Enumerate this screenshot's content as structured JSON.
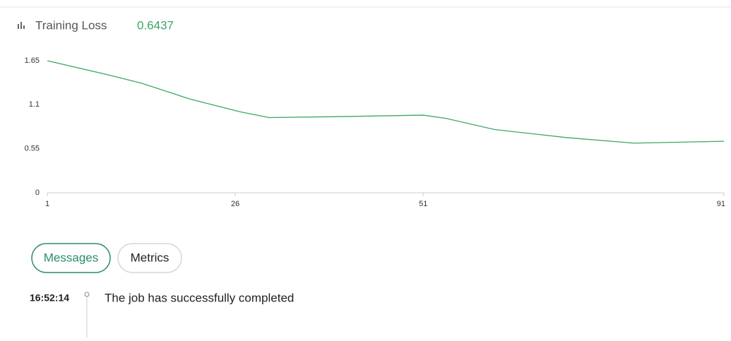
{
  "header": {
    "title": "Training Loss",
    "value": "0.6437"
  },
  "chart_data": {
    "type": "line",
    "color": "#3aa864",
    "x": [
      1,
      8.8,
      13.5,
      20,
      26.7,
      30.5,
      39,
      51,
      54,
      60.5,
      70,
      79,
      91
    ],
    "values": [
      1.65,
      1.48,
      1.37,
      1.17,
      1.01,
      0.94,
      0.95,
      0.97,
      0.93,
      0.79,
      0.69,
      0.62,
      0.6437
    ],
    "xlim": [
      1,
      91
    ],
    "ylim": [
      0,
      1.65
    ],
    "xticks": [
      1,
      26,
      51,
      91
    ],
    "yticks": [
      0,
      0.55,
      1.1,
      1.65
    ]
  },
  "tabs": [
    "Messages",
    "Metrics"
  ],
  "messages": [
    {
      "time": "16:52:14",
      "text": "The job has successfully completed"
    }
  ]
}
